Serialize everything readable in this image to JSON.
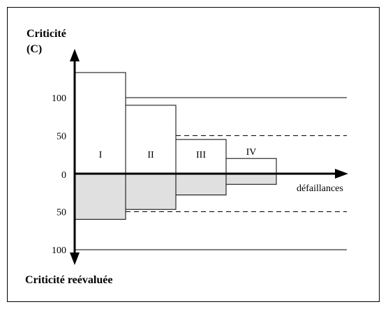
{
  "chart_data": {
    "type": "bar",
    "title_top": "Criticité",
    "title_top_unit": "(C)",
    "title_bottom": "Criticité reévaluée",
    "xlabel": "défaillances",
    "ytick_labels": [
      "100",
      "50",
      "0",
      "50",
      "100"
    ],
    "categories": [
      "I",
      "II",
      "III",
      "IV"
    ],
    "series": [
      {
        "name": "",
        "values": [
          133,
          90,
          45,
          20
        ]
      },
      {
        "name": "",
        "values": [
          60,
          47,
          28,
          14
        ]
      }
    ],
    "ylim": [
      -100,
      100
    ],
    "solid_reference_lines": [
      100,
      -100
    ],
    "dashed_reference_lines": [
      50,
      -50
    ],
    "colors": {
      "upper_fill": "#ffffff",
      "lower_fill": "#e0e0e0",
      "stroke": "#000000"
    }
  }
}
